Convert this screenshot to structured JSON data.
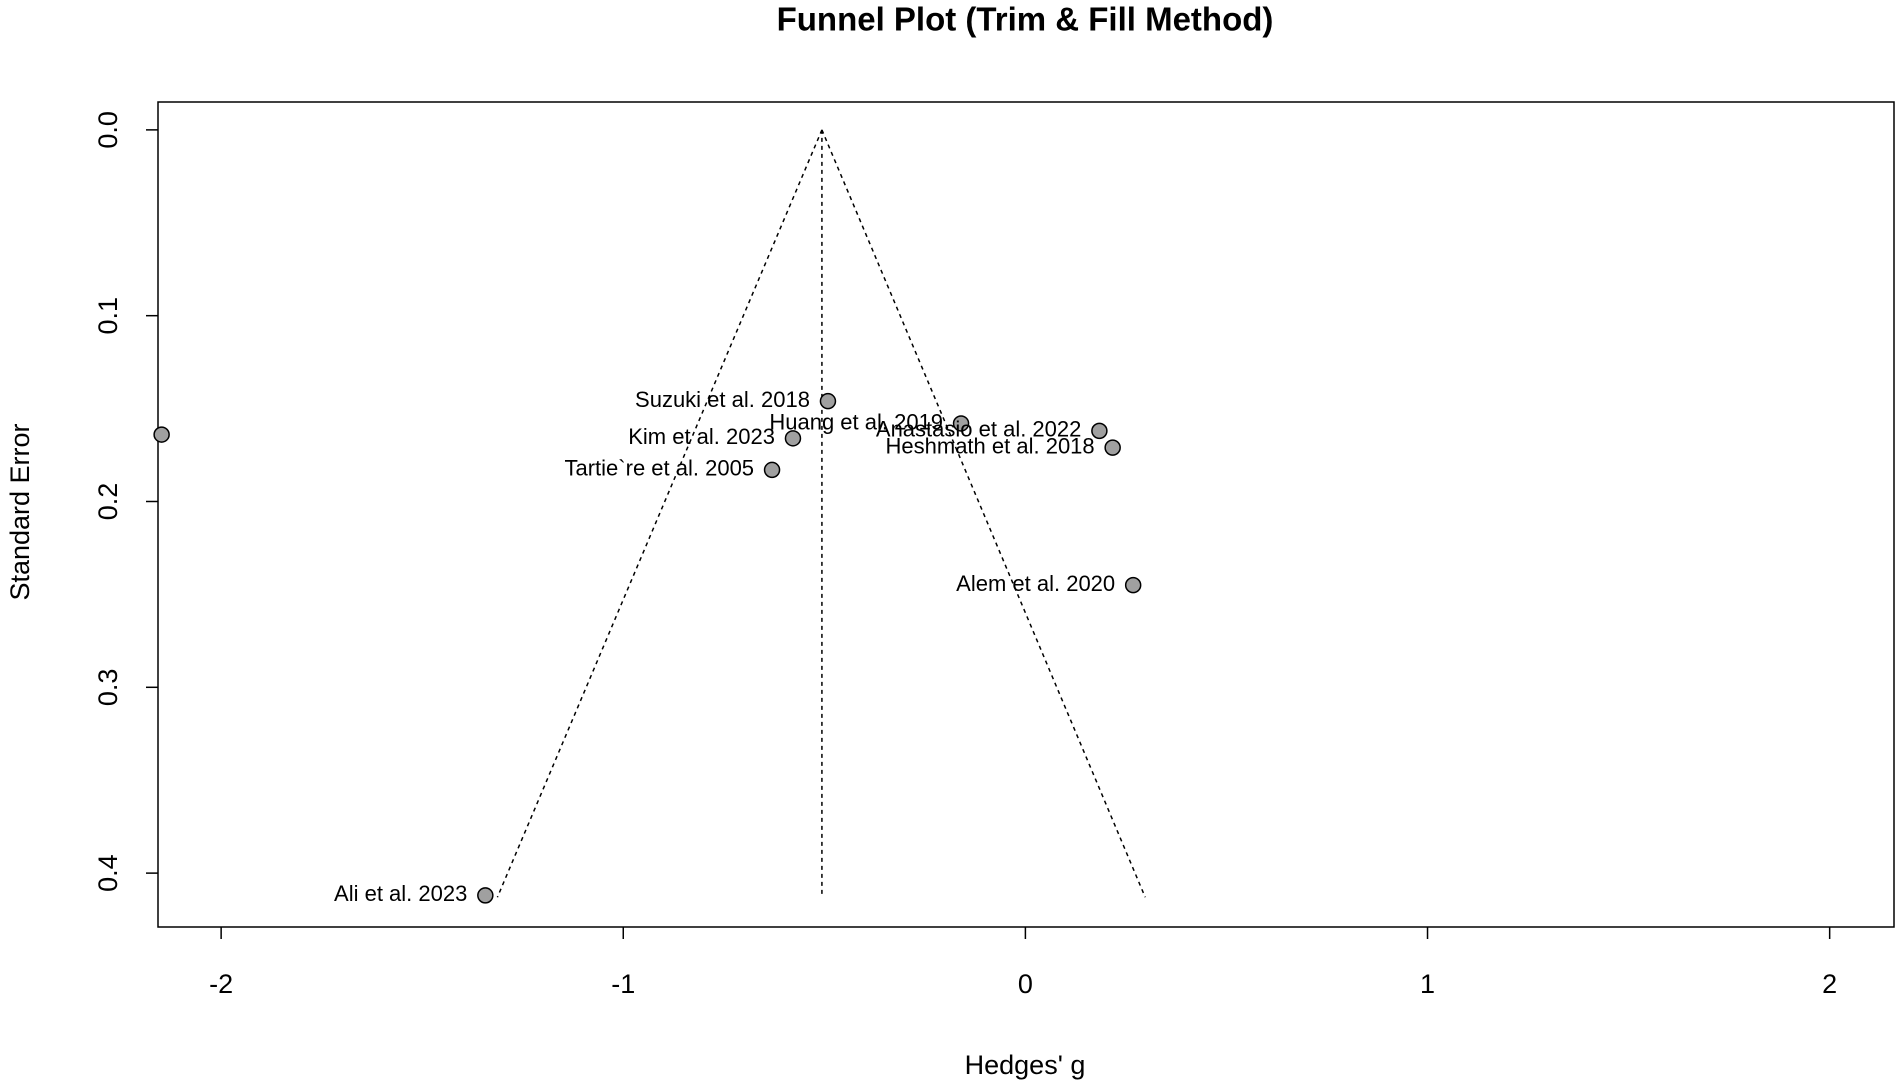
{
  "chart_data": {
    "type": "scatter",
    "title": "Funnel Plot (Trim & Fill Method)",
    "xlabel": "Hedges' g",
    "ylabel": "Standard Error",
    "x": [
      -0.491,
      -0.16,
      0.184,
      0.217,
      -0.578,
      -0.63,
      0.268,
      -1.343,
      -2.148
    ],
    "values": [
      0.146,
      0.158,
      0.162,
      0.171,
      0.166,
      0.183,
      0.245,
      0.412,
      0.164
    ],
    "labels": [
      "Suzuki et al. 2018",
      "Huang et al. 2019",
      "Anastasio et al. 2022",
      "Heshmath et al. 2018",
      "Kim et al. 2023",
      "Tartie`re et al. 2005",
      "Alem et al. 2020",
      "Ali et al. 2023",
      null
    ],
    "color": "#a0a0a0",
    "xlim": [
      -2.157,
      2.16
    ],
    "xticks": [
      -2,
      -1,
      0,
      1,
      2
    ],
    "ylim": [
      -0.015,
      0.429
    ],
    "yticks": [
      {
        "value": 0,
        "label": "0.0"
      },
      0.1,
      0.2,
      0.3,
      0.4
    ],
    "y_inverted": true,
    "funnel": {
      "center": -0.506,
      "top_se": 0,
      "bottom_se": 0.413,
      "bottom_left": -1.313,
      "bottom_right": 0.298
    }
  }
}
